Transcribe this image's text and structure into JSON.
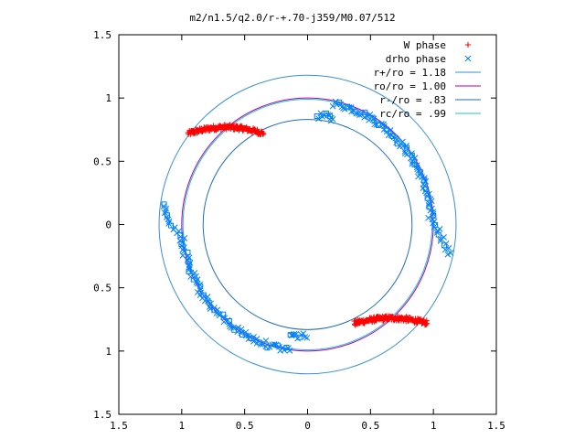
{
  "chart_data": {
    "type": "scatter",
    "title": "m2/n1.5/q2.0/r-+.70-j359/M0.07/512",
    "xlim": [
      -1.5,
      1.5
    ],
    "ylim": [
      -1.5,
      1.5
    ],
    "x_ticks": [
      -1.5,
      -1,
      -0.5,
      0,
      0.5,
      1,
      1.5
    ],
    "y_ticks": [
      -1.5,
      -1,
      -0.5,
      0,
      0.5,
      1,
      1.5
    ],
    "x_tick_labels": [
      "1.5",
      "1",
      "0.5",
      "0",
      "0.5",
      "1",
      "1.5"
    ],
    "y_tick_labels": [
      "1.5",
      "1",
      "0.5",
      "0",
      "0.5",
      "1",
      "1.5"
    ],
    "grid": false,
    "legend_position": "top-right",
    "series": [
      {
        "name": "W phase",
        "kind": "points",
        "marker": "plus",
        "color": "#ff0000",
        "arcs": [
          {
            "center": [
              -0.6,
              0.75
            ],
            "r_range": [
              0.95,
              1.2
            ],
            "angle_range_deg": [
              118,
              148
            ]
          },
          {
            "center": [
              0.6,
              -0.75
            ],
            "r_range": [
              0.95,
              1.2
            ],
            "angle_range_deg": [
              -62,
              -32
            ]
          }
        ]
      },
      {
        "name": "drho phase",
        "kind": "points",
        "marker": "cross",
        "color": "#0080ff",
        "arcs": [
          {
            "r": 1.0,
            "angle_range_deg": [
              -5,
              85
            ]
          },
          {
            "r": 1.0,
            "angle_range_deg": [
              175,
              265
            ]
          }
        ]
      },
      {
        "name": "r+/ro = 1.18",
        "kind": "circle",
        "r": 1.18,
        "color": "#3a8fd6"
      },
      {
        "name": "ro/ro = 1.00",
        "kind": "circle",
        "r": 1.0,
        "color": "#b000b0"
      },
      {
        "name": "r-/ro = .83",
        "kind": "circle",
        "r": 0.83,
        "color": "#1f6fb8"
      },
      {
        "name": "rc/ro = .99",
        "kind": "circle",
        "r": 0.99,
        "color": "#20c0d0"
      }
    ]
  }
}
